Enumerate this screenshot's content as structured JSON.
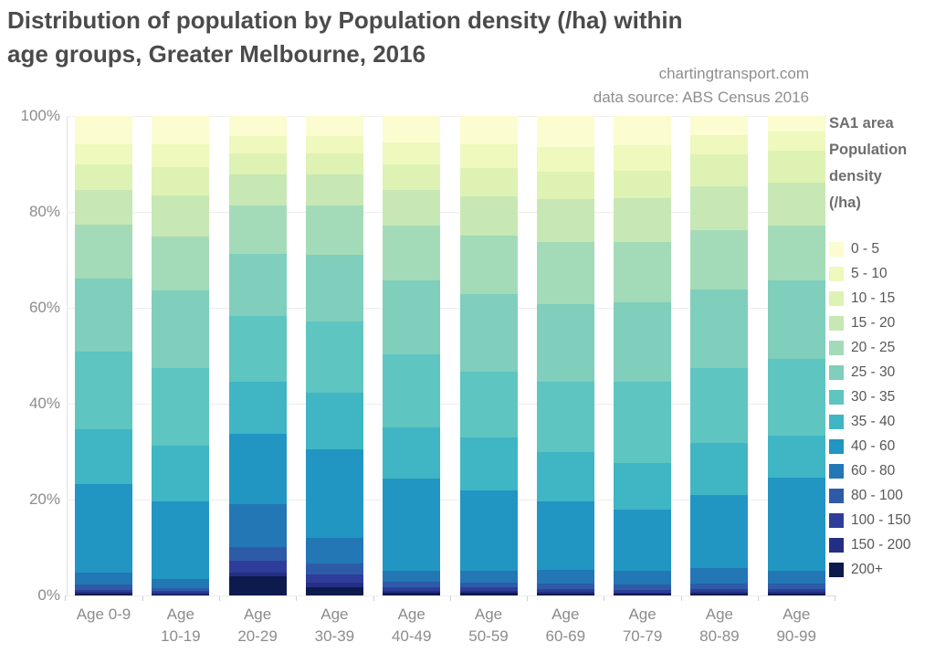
{
  "title": {
    "line1": "Distribution of population by Population density (/ha) within",
    "line2": "age groups, Greater Melbourne, 2016"
  },
  "attribution": {
    "line1": "chartingtransport.com",
    "line2": "data source: ABS Census 2016"
  },
  "y_axis": {
    "tick_labels": [
      "0%",
      "20%",
      "40%",
      "60%",
      "80%",
      "100%"
    ]
  },
  "x_axis": {
    "labels": [
      {
        "line1": "Age 0-9",
        "line2": ""
      },
      {
        "line1": "Age",
        "line2": "10-19"
      },
      {
        "line1": "Age",
        "line2": "20-29"
      },
      {
        "line1": "Age",
        "line2": "30-39"
      },
      {
        "line1": "Age",
        "line2": "40-49"
      },
      {
        "line1": "Age",
        "line2": "50-59"
      },
      {
        "line1": "Age",
        "line2": "60-69"
      },
      {
        "line1": "Age",
        "line2": "70-79"
      },
      {
        "line1": "Age",
        "line2": "80-89"
      },
      {
        "line1": "Age",
        "line2": "90-99"
      }
    ]
  },
  "legend": {
    "title_lines": [
      "SA1 area",
      "Population",
      "density",
      "(/ha)"
    ],
    "items": [
      {
        "label": "0 - 5",
        "color": "#fbfcd0"
      },
      {
        "label": "5 - 10",
        "color": "#eff8bd"
      },
      {
        "label": "10 - 15",
        "color": "#def2b3"
      },
      {
        "label": "15 - 20",
        "color": "#c7e8b4"
      },
      {
        "label": "20 - 25",
        "color": "#a3dbb8"
      },
      {
        "label": "25 - 30",
        "color": "#80cebc"
      },
      {
        "label": "30 - 35",
        "color": "#5ec5c0"
      },
      {
        "label": "35 - 40",
        "color": "#40b5c4"
      },
      {
        "label": "40 - 60",
        "color": "#2196c2"
      },
      {
        "label": "60 - 80",
        "color": "#2277b4"
      },
      {
        "label": "80 - 100",
        "color": "#2e5ba8"
      },
      {
        "label": "100 - 150",
        "color": "#2f3d9a"
      },
      {
        "label": "150 - 200",
        "color": "#242e83"
      },
      {
        "label": "200+",
        "color": "#0d1a4d"
      }
    ]
  },
  "chart_data": {
    "type": "bar",
    "stacked": true,
    "normalized_percent": true,
    "title": "Distribution of population by Population density (/ha) within age groups, Greater Melbourne, 2016",
    "xlabel": "",
    "ylabel": "",
    "ylim": [
      0,
      100
    ],
    "grid": true,
    "legend_position": "right",
    "legend_title": "SA1 area Population density (/ha)",
    "categories": [
      "Age 0-9",
      "Age 10-19",
      "Age 20-29",
      "Age 30-39",
      "Age 40-49",
      "Age 50-59",
      "Age 60-69",
      "Age 70-79",
      "Age 80-89",
      "Age 90-99"
    ],
    "series": [
      {
        "name": "0 - 5",
        "color": "#fbfcd0",
        "values": [
          5.9,
          5.9,
          4.2,
          4.1,
          5.6,
          5.9,
          6.5,
          6.1,
          4.0,
          3.2
        ]
      },
      {
        "name": "5 - 10",
        "color": "#eff8bd",
        "values": [
          4.2,
          4.7,
          3.6,
          3.8,
          4.5,
          4.9,
          5.2,
          5.3,
          4.0,
          4.1
        ]
      },
      {
        "name": "10 - 15",
        "color": "#def2b3",
        "values": [
          5.3,
          5.9,
          4.4,
          4.3,
          5.3,
          6.0,
          5.6,
          5.7,
          6.6,
          6.6
        ]
      },
      {
        "name": "15 - 20",
        "color": "#c7e8b4",
        "values": [
          7.3,
          8.6,
          6.5,
          6.5,
          7.4,
          8.2,
          9.0,
          9.1,
          9.2,
          8.9
        ]
      },
      {
        "name": "20 - 25",
        "color": "#a3dbb8",
        "values": [
          11.2,
          11.2,
          10.0,
          10.2,
          11.5,
          12.1,
          13.0,
          12.7,
          12.4,
          11.5
        ]
      },
      {
        "name": "25 - 30",
        "color": "#80cebc",
        "values": [
          15.3,
          16.2,
          13.0,
          13.9,
          15.5,
          16.2,
          16.2,
          16.6,
          16.3,
          16.3
        ]
      },
      {
        "name": "30 - 35",
        "color": "#5ec5c0",
        "values": [
          16.2,
          16.3,
          13.7,
          14.9,
          15.2,
          13.7,
          14.6,
          16.8,
          15.7,
          16.0
        ]
      },
      {
        "name": "35 - 40",
        "color": "#40b5c4",
        "values": [
          11.4,
          11.5,
          10.8,
          11.8,
          10.7,
          11.1,
          10.2,
          9.9,
          10.8,
          8.9
        ]
      },
      {
        "name": "40 - 60",
        "color": "#2196c2",
        "values": [
          18.5,
          16.3,
          14.8,
          18.5,
          19.1,
          16.7,
          14.3,
          12.7,
          15.3,
          19.3
        ]
      },
      {
        "name": "60 - 80",
        "color": "#2277b4",
        "values": [
          2.5,
          1.8,
          8.9,
          5.4,
          2.4,
          2.5,
          2.9,
          2.9,
          3.2,
          2.8
        ]
      },
      {
        "name": "80 - 100",
        "color": "#2e5ba8",
        "values": [
          1.0,
          0.6,
          2.8,
          2.2,
          1.1,
          1.0,
          1.1,
          1.0,
          1.1,
          1.1
        ]
      },
      {
        "name": "100 - 150",
        "color": "#2f3d9a",
        "values": [
          0.5,
          0.5,
          2.6,
          1.8,
          0.8,
          0.8,
          0.7,
          0.6,
          0.7,
          0.6
        ]
      },
      {
        "name": "150 - 200",
        "color": "#242e83",
        "values": [
          0.4,
          0.3,
          0.8,
          0.9,
          0.4,
          0.4,
          0.4,
          0.3,
          0.4,
          0.4
        ]
      },
      {
        "name": "200+",
        "color": "#0d1a4d",
        "values": [
          0.3,
          0.2,
          3.9,
          1.7,
          0.5,
          0.5,
          0.3,
          0.3,
          0.3,
          0.3
        ]
      }
    ]
  }
}
